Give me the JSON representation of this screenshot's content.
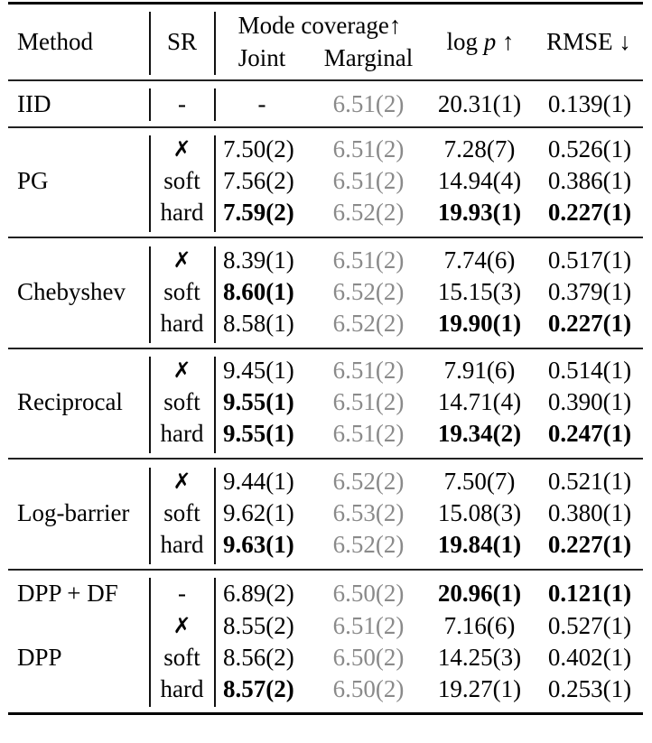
{
  "header": {
    "method": "Method",
    "sr": "SR",
    "mode_coverage": "Mode coverage↑",
    "joint": "Joint",
    "marginal": "Marginal",
    "logp_log": "log",
    "logp_p": "p",
    "logp_arrow": "↑",
    "rmse": "RMSE ↓"
  },
  "rows": [
    {
      "method": "IID",
      "sr": "-",
      "joint": "-",
      "marginal": "6.51(2)",
      "logp": "20.31(1)",
      "rmse": "0.139(1)"
    },
    {
      "method": "PG",
      "sr": "✗",
      "joint": "7.50(2)",
      "marginal": "6.51(2)",
      "logp": "7.28(7)",
      "rmse": "0.526(1)"
    },
    {
      "method": "",
      "sr": "soft",
      "joint": "7.56(2)",
      "marginal": "6.51(2)",
      "logp": "14.94(4)",
      "rmse": "0.386(1)"
    },
    {
      "method": "",
      "sr": "hard",
      "joint": "7.59(2)",
      "marginal": "6.52(2)",
      "logp": "19.93(1)",
      "rmse": "0.227(1)"
    },
    {
      "method": "Chebyshev",
      "sr": "✗",
      "joint": "8.39(1)",
      "marginal": "6.51(2)",
      "logp": "7.74(6)",
      "rmse": "0.517(1)"
    },
    {
      "method": "",
      "sr": "soft",
      "joint": "8.60(1)",
      "marginal": "6.52(2)",
      "logp": "15.15(3)",
      "rmse": "0.379(1)"
    },
    {
      "method": "",
      "sr": "hard",
      "joint": "8.58(1)",
      "marginal": "6.52(2)",
      "logp": "19.90(1)",
      "rmse": "0.227(1)"
    },
    {
      "method": "Reciprocal",
      "sr": "✗",
      "joint": "9.45(1)",
      "marginal": "6.51(2)",
      "logp": "7.91(6)",
      "rmse": "0.514(1)"
    },
    {
      "method": "",
      "sr": "soft",
      "joint": "9.55(1)",
      "marginal": "6.51(2)",
      "logp": "14.71(4)",
      "rmse": "0.390(1)"
    },
    {
      "method": "",
      "sr": "hard",
      "joint": "9.55(1)",
      "marginal": "6.51(2)",
      "logp": "19.34(2)",
      "rmse": "0.247(1)"
    },
    {
      "method": "Log-barrier",
      "sr": "✗",
      "joint": "9.44(1)",
      "marginal": "6.52(2)",
      "logp": "7.50(7)",
      "rmse": "0.521(1)"
    },
    {
      "method": "",
      "sr": "soft",
      "joint": "9.62(1)",
      "marginal": "6.53(2)",
      "logp": "15.08(3)",
      "rmse": "0.380(1)"
    },
    {
      "method": "",
      "sr": "hard",
      "joint": "9.63(1)",
      "marginal": "6.52(2)",
      "logp": "19.84(1)",
      "rmse": "0.227(1)"
    },
    {
      "method": "DPP + DF",
      "sr": "-",
      "joint": "6.89(2)",
      "marginal": "6.50(2)",
      "logp": "20.96(1)",
      "rmse": "0.121(1)"
    },
    {
      "method": "DPP",
      "sr": "✗",
      "joint": "8.55(2)",
      "marginal": "6.51(2)",
      "logp": "7.16(6)",
      "rmse": "0.527(1)"
    },
    {
      "method": "",
      "sr": "soft",
      "joint": "8.56(2)",
      "marginal": "6.50(2)",
      "logp": "14.25(3)",
      "rmse": "0.402(1)"
    },
    {
      "method": "",
      "sr": "hard",
      "joint": "8.57(2)",
      "marginal": "6.50(2)",
      "logp": "19.27(1)",
      "rmse": "0.253(1)"
    }
  ]
}
